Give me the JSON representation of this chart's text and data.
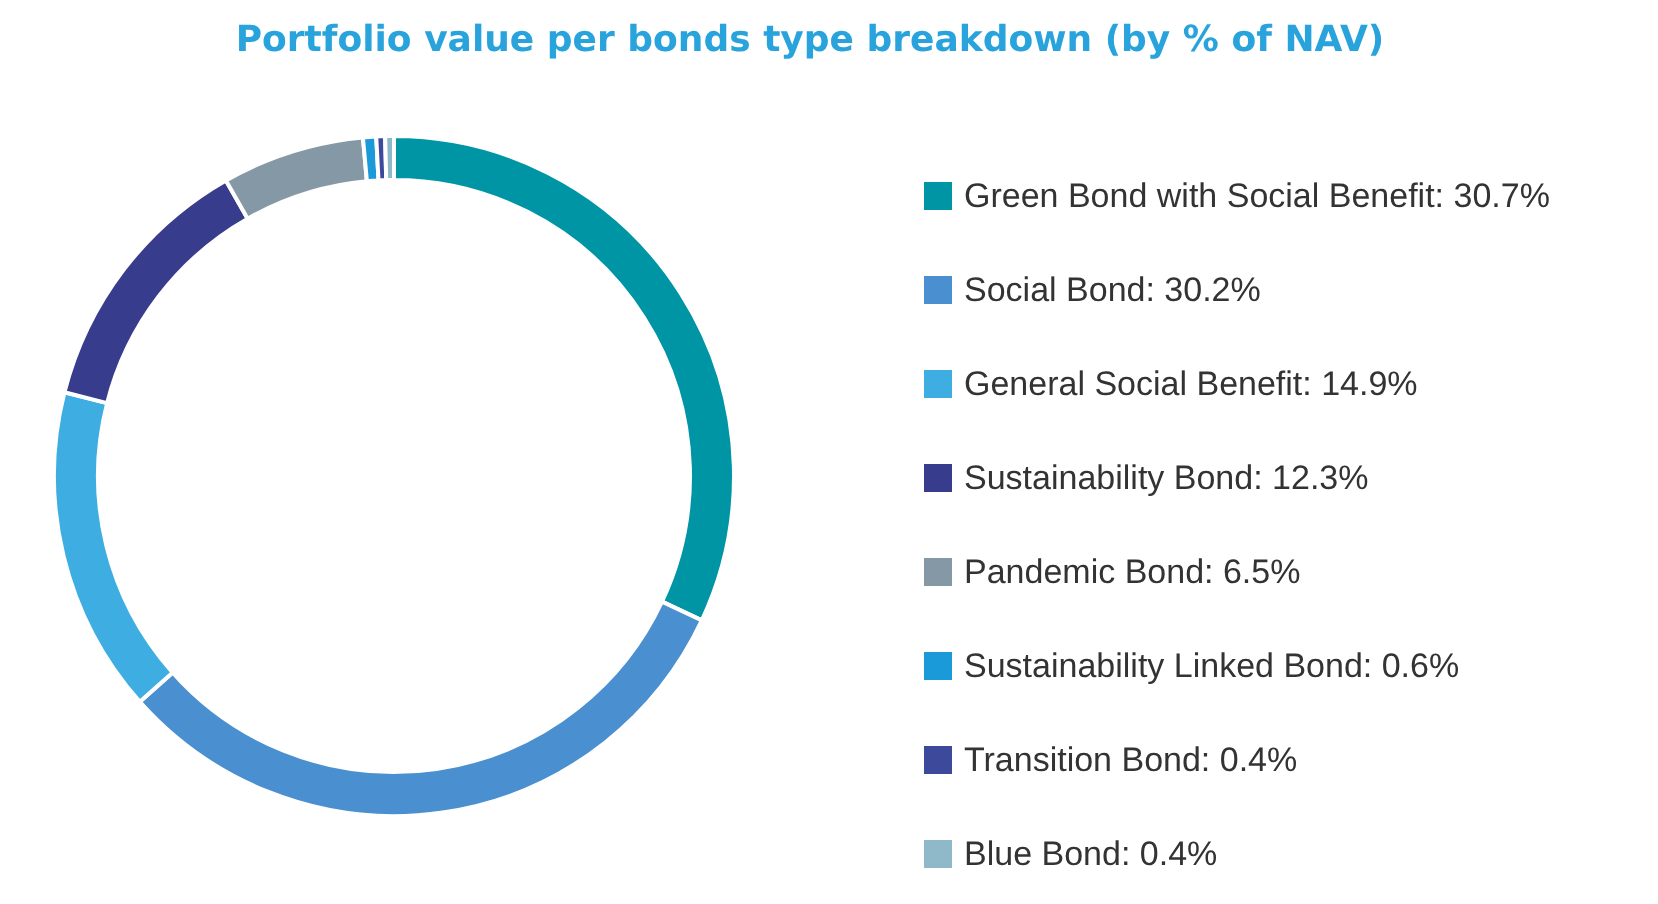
{
  "chart_data": {
    "type": "donut",
    "title": "Portfolio value per bonds type breakdown (by % of NAV)",
    "categories": [
      "Green Bond with Social Benefit",
      "Social Bond",
      "General Social Benefit",
      "Sustainability Bond",
      "Pandemic Bond",
      "Sustainability Linked Bond",
      "Transition Bond",
      "Blue Bond"
    ],
    "values": [
      30.7,
      30.2,
      14.9,
      12.3,
      6.5,
      0.6,
      0.4,
      0.4
    ],
    "value_labels": [
      "30.7%",
      "30.2%",
      "14.9%",
      "12.3%",
      "6.5%",
      "0.6%",
      "0.4%",
      "0.4%"
    ],
    "colors": [
      "#0095a5",
      "#4a8fcf",
      "#3eaee2",
      "#383c8c",
      "#8498a6",
      "#1a9ad8",
      "#3d4a9b",
      "#8fb9c9"
    ],
    "legend": "right"
  }
}
